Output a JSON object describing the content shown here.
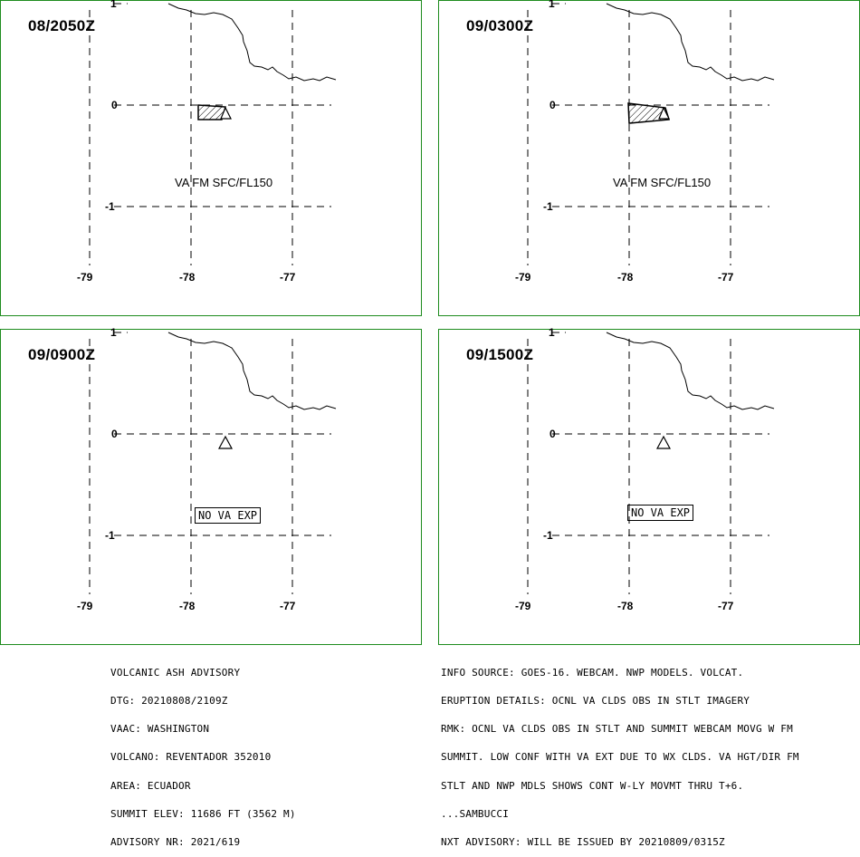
{
  "panels": [
    {
      "title": "08/2050Z",
      "label": "VA FM SFC/FL150",
      "no_va": null
    },
    {
      "title": "09/0300Z",
      "label": "VA FM SFC/FL150",
      "no_va": null
    },
    {
      "title": "09/0900Z",
      "label": null,
      "no_va": "NO VA EXP"
    },
    {
      "title": "09/1500Z",
      "label": null,
      "no_va": "NO VA EXP"
    }
  ],
  "axes": {
    "lat_labels": [
      "1",
      "0",
      "-1"
    ],
    "lon_labels": [
      "-79",
      "-78",
      "-77"
    ]
  },
  "advisory_left": [
    "VOLCANIC ASH ADVISORY",
    "DTG: 20210808/2109Z",
    "VAAC: WASHINGTON",
    "VOLCANO: REVENTADOR 352010",
    "AREA: ECUADOR",
    "SUMMIT ELEV: 11686 FT (3562 M)",
    "ADVISORY NR: 2021/619"
  ],
  "advisory_right": [
    "INFO SOURCE: GOES-16. WEBCAM. NWP MODELS. VOLCAT.",
    "ERUPTION DETAILS: OCNL VA CLDS OBS IN STLT IMAGERY",
    "RMK: OCNL VA CLDS OBS IN STLT AND SUMMIT WEBCAM MOVG W FM",
    "SUMMIT. LOW CONF WITH VA EXT DUE TO WX CLDS. VA HGT/DIR FM",
    "STLT AND NWP MDLS SHOWS CONT W-LY MOVMT THRU T+6.",
    "...SAMBUCCI",
    "NXT ADVISORY: WILL BE ISSUED BY 20210809/0315Z"
  ],
  "colors": {
    "frame": "#1e8c1e",
    "ink": "#000000"
  },
  "icons": [
    "volcano-triangle-icon",
    "hatched-ash-polygon"
  ]
}
